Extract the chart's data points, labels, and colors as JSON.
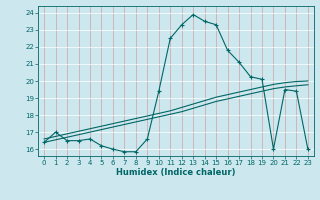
{
  "xlabel": "Humidex (Indice chaleur)",
  "bg_color": "#cce8ee",
  "grid_color": "#b0d8e0",
  "line_color": "#006666",
  "xlim": [
    -0.5,
    23.5
  ],
  "ylim": [
    15.6,
    24.4
  ],
  "yticks": [
    16,
    17,
    18,
    19,
    20,
    21,
    22,
    23,
    24
  ],
  "xticks": [
    0,
    1,
    2,
    3,
    4,
    5,
    6,
    7,
    8,
    9,
    10,
    11,
    12,
    13,
    14,
    15,
    16,
    17,
    18,
    19,
    20,
    21,
    22,
    23
  ],
  "line1_x": [
    0,
    1,
    2,
    3,
    4,
    5,
    6,
    7,
    8,
    9,
    10,
    11,
    12,
    13,
    14,
    15,
    16,
    17,
    18,
    19,
    20,
    21,
    22,
    23
  ],
  "line1_y": [
    16.4,
    17.0,
    16.5,
    16.5,
    16.6,
    16.2,
    16.0,
    15.85,
    15.85,
    16.6,
    19.4,
    22.5,
    23.3,
    23.9,
    23.5,
    23.3,
    21.8,
    21.1,
    20.25,
    20.1,
    16.0,
    19.5,
    19.4,
    16.0
  ],
  "line2_x": [
    0,
    1,
    2,
    3,
    4,
    5,
    6,
    7,
    8,
    9,
    10,
    11,
    12,
    13,
    14,
    15,
    16,
    17,
    18,
    19,
    20,
    21,
    22,
    23
  ],
  "line2_y": [
    16.4,
    16.55,
    16.7,
    16.85,
    17.0,
    17.15,
    17.3,
    17.45,
    17.6,
    17.75,
    17.9,
    18.05,
    18.2,
    18.4,
    18.6,
    18.8,
    18.95,
    19.1,
    19.25,
    19.4,
    19.55,
    19.65,
    19.72,
    19.78
  ],
  "line3_x": [
    0,
    1,
    2,
    3,
    4,
    5,
    6,
    7,
    8,
    9,
    10,
    11,
    12,
    13,
    14,
    15,
    16,
    17,
    18,
    19,
    20,
    21,
    22,
    23
  ],
  "line3_y": [
    16.6,
    16.75,
    16.9,
    17.05,
    17.2,
    17.35,
    17.5,
    17.65,
    17.8,
    17.95,
    18.1,
    18.25,
    18.45,
    18.65,
    18.85,
    19.05,
    19.2,
    19.35,
    19.5,
    19.65,
    19.8,
    19.9,
    19.97,
    20.0
  ]
}
